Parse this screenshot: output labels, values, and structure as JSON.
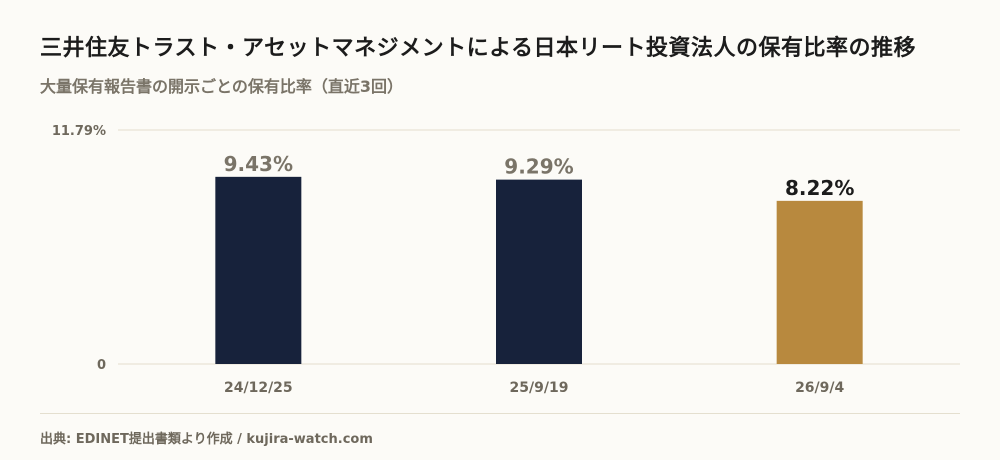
{
  "header": {
    "title": "三井住友トラスト・アセットマネジメントによる日本リート投資法人の保有比率の推移",
    "subtitle": "大量保有報告書の開示ごとの保有比率（直近3回）"
  },
  "footer": {
    "source": "出典: EDINET提出書類より作成 / kujira-watch.com"
  },
  "chart_data": {
    "type": "bar",
    "categories": [
      "24/12/25",
      "25/9/19",
      "26/9/4"
    ],
    "values": [
      9.43,
      9.29,
      8.22
    ],
    "value_labels": [
      "9.43%",
      "9.29%",
      "8.22%"
    ],
    "ylim": [
      0,
      11.79
    ],
    "y_tick_labels": [
      "0",
      "11.79%"
    ],
    "colors": [
      "#17223b",
      "#17223b",
      "#b8893e"
    ],
    "value_label_colors": [
      "#7a7468",
      "#7a7468",
      "#1c1c1c"
    ],
    "grid": true,
    "legend": "none"
  }
}
